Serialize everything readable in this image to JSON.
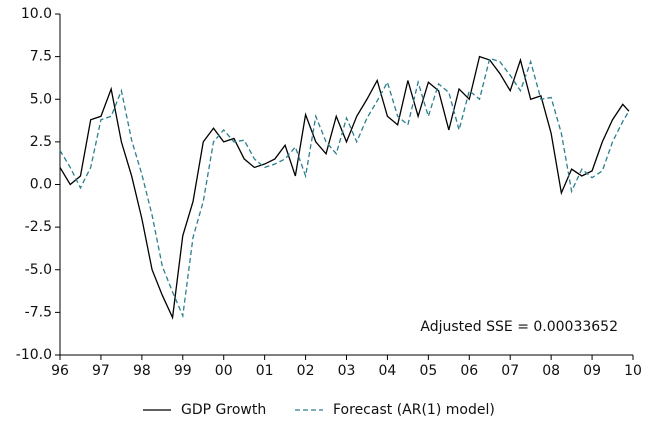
{
  "chart_data": {
    "type": "line",
    "annotation": "Adjusted SSE = 0.00033652",
    "x": [
      1996,
      1996.25,
      1996.5,
      1996.75,
      1997,
      1997.25,
      1997.5,
      1997.75,
      1998,
      1998.25,
      1998.5,
      1998.75,
      1999,
      1999.25,
      1999.5,
      1999.75,
      2000,
      2000.25,
      2000.5,
      2000.75,
      2001,
      2001.25,
      2001.5,
      2001.75,
      2002,
      2002.25,
      2002.5,
      2002.75,
      2003,
      2003.25,
      2003.5,
      2003.75,
      2004,
      2004.25,
      2004.5,
      2004.75,
      2005,
      2005.25,
      2005.5,
      2005.75,
      2006,
      2006.25,
      2006.5,
      2006.75,
      2007,
      2007.25,
      2007.5,
      2007.75,
      2008,
      2008.25,
      2008.5,
      2008.75,
      2009,
      2009.25,
      2009.5,
      2009.75,
      2009.9
    ],
    "series": [
      {
        "name": "GDP Growth",
        "color": "#000000",
        "dash": false,
        "values": [
          1.0,
          0.0,
          0.5,
          3.8,
          4.0,
          5.6,
          2.5,
          0.5,
          -2.0,
          -5.0,
          -6.5,
          -7.8,
          -3.0,
          -1.0,
          2.5,
          3.3,
          2.5,
          2.7,
          1.5,
          1.0,
          1.2,
          1.5,
          2.3,
          0.5,
          4.1,
          2.5,
          1.8,
          4.0,
          2.5,
          4.0,
          5.0,
          6.1,
          4.0,
          3.5,
          6.1,
          4.0,
          6.0,
          5.5,
          3.2,
          5.6,
          5.0,
          7.5,
          7.3,
          6.5,
          5.5,
          7.3,
          5.0,
          5.2,
          3.0,
          -0.5,
          0.9,
          0.5,
          0.8,
          2.5,
          3.8,
          4.7,
          4.3
        ]
      },
      {
        "name": "Forecast (AR(1) model)",
        "color": "#2a7f8f",
        "dash": true,
        "values": [
          2.0,
          1.0,
          -0.2,
          1.0,
          3.8,
          4.0,
          5.5,
          2.6,
          0.6,
          -1.8,
          -4.8,
          -6.3,
          -7.7,
          -3.1,
          -1.0,
          2.5,
          3.2,
          2.5,
          2.6,
          1.5,
          1.0,
          1.2,
          1.5,
          2.2,
          0.5,
          4.0,
          2.5,
          1.8,
          3.9,
          2.5,
          3.9,
          4.9,
          6.0,
          4.0,
          3.5,
          6.0,
          4.0,
          5.9,
          5.4,
          3.2,
          5.5,
          5.0,
          7.4,
          7.2,
          6.4,
          5.5,
          7.2,
          5.0,
          5.1,
          3.0,
          -0.4,
          0.9,
          0.4,
          0.8,
          2.5,
          3.7,
          4.3
        ]
      }
    ],
    "xlim": [
      1996,
      2010
    ],
    "xticks": [
      {
        "value": 1996,
        "label": "96"
      },
      {
        "value": 1997,
        "label": "97"
      },
      {
        "value": 1998,
        "label": "98"
      },
      {
        "value": 1999,
        "label": "99"
      },
      {
        "value": 2000,
        "label": "00"
      },
      {
        "value": 2001,
        "label": "01"
      },
      {
        "value": 2002,
        "label": "02"
      },
      {
        "value": 2003,
        "label": "03"
      },
      {
        "value": 2004,
        "label": "04"
      },
      {
        "value": 2005,
        "label": "05"
      },
      {
        "value": 2006,
        "label": "06"
      },
      {
        "value": 2007,
        "label": "07"
      },
      {
        "value": 2008,
        "label": "08"
      },
      {
        "value": 2009,
        "label": "09"
      },
      {
        "value": 2010,
        "label": "10"
      }
    ],
    "ylim": [
      -10,
      10
    ],
    "yticks": [
      {
        "value": -10,
        "label": "-10.0"
      },
      {
        "value": -7.5,
        "label": "-7.5"
      },
      {
        "value": -5,
        "label": "-5.0"
      },
      {
        "value": -2.5,
        "label": "-2.5"
      },
      {
        "value": 0,
        "label": "0.0"
      },
      {
        "value": 2.5,
        "label": "2.5"
      },
      {
        "value": 5,
        "label": "5.0"
      },
      {
        "value": 7.5,
        "label": "7.5"
      },
      {
        "value": 10,
        "label": "10.0"
      }
    ]
  }
}
